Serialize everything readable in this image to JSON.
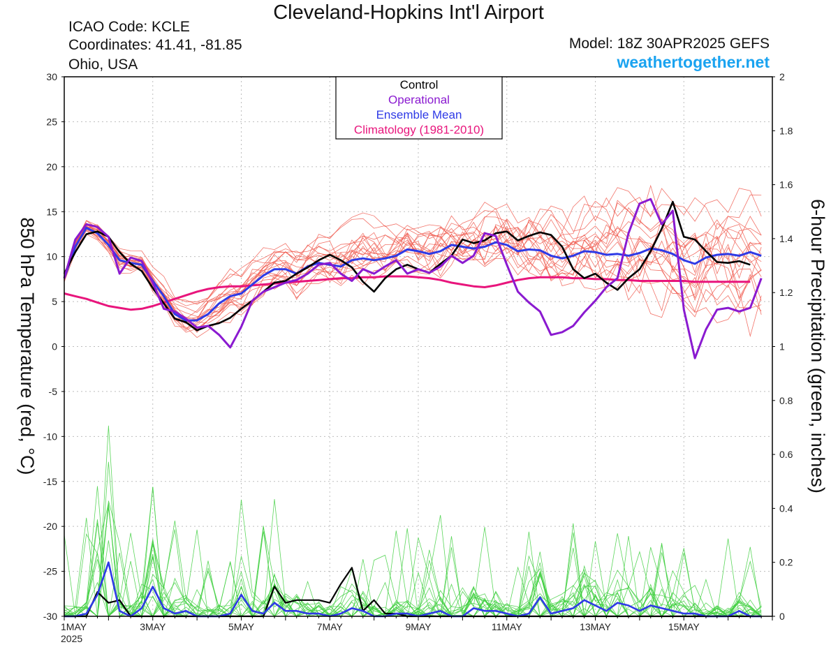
{
  "header": {
    "title": "Cleveland-Hopkins Int'l Airport",
    "icao": "ICAO Code: KCLE",
    "coordinates": "Coordinates: 41.41, -81.85",
    "location": "Ohio, USA",
    "model": "Model: 18Z 30APR2025 GEFS",
    "site": "weathertogether.net"
  },
  "chart_data": {
    "type": "line",
    "ylabel": "850 hPa Temperature (red, °C)",
    "y2label": "6-hour Precipitation (green, inches)",
    "xlim": [
      0,
      64
    ],
    "ylim": [
      -30,
      30
    ],
    "y2lim": [
      0,
      2
    ],
    "yticks": [
      "30",
      "25",
      "20",
      "15",
      "10",
      "5",
      "0",
      "-5",
      "-10",
      "-15",
      "-20",
      "-25",
      "-30"
    ],
    "y2ticks": [
      "2",
      "1.8",
      "1.6",
      "1.4",
      "1.2",
      "1",
      "0.8",
      "0.6",
      "0.4",
      "0.2",
      "0"
    ],
    "xticks": [
      {
        "x": 0,
        "label": "1MAY"
      },
      {
        "x": 8,
        "label": "3MAY"
      },
      {
        "x": 16,
        "label": "5MAY"
      },
      {
        "x": 24,
        "label": "7MAY"
      },
      {
        "x": 32,
        "label": "9MAY"
      },
      {
        "x": 40,
        "label": "11MAY"
      },
      {
        "x": 48,
        "label": "13MAY"
      },
      {
        "x": 56,
        "label": "15MAY"
      }
    ],
    "year_label": "2025",
    "grid": true,
    "legend_position": "top-center",
    "legend": [
      {
        "label": "Control",
        "color": "#000000"
      },
      {
        "label": "Operational",
        "color": "#8a1ad0"
      },
      {
        "label": "Ensemble Mean",
        "color": "#2e3ae6"
      },
      {
        "label": "Climatology (1981-2010)",
        "color": "#e8157c"
      }
    ],
    "colors": {
      "members_temp": "#f05a4f",
      "members_precip": "#3ecf3e",
      "control": "#000000",
      "operational": "#8a1ad0",
      "mean": "#2e3ae6",
      "climatology": "#e8157c"
    },
    "temperature_series": [
      {
        "name": "Control",
        "values": [
          8.1,
          10.5,
          12.5,
          12.8,
          12.2,
          10.5,
          9.2,
          8.4,
          6.5,
          4.8,
          3.1,
          2.7,
          1.8,
          2.3,
          2.6,
          3.2,
          4.2,
          5.1,
          6.1,
          7.1,
          7.3,
          8.1,
          8.8,
          9.6,
          10.2,
          9.6,
          8.8,
          7.2,
          6.1,
          7.6,
          8.6,
          9.1,
          8.6,
          8.2,
          9.2,
          10.1,
          11.9,
          11.5,
          11.8,
          12.6,
          12.8,
          11.8,
          12.3,
          12.7,
          12.4,
          11.1,
          8.6,
          7.6,
          8.1,
          7.1,
          6.3,
          7.6,
          8.6,
          10.6,
          13.1,
          16.1,
          12.2,
          11.9,
          10.6,
          9.4,
          9.3,
          9.5,
          9.1
        ]
      },
      {
        "name": "Operational",
        "values": [
          7.6,
          11.9,
          13.6,
          13.3,
          12.2,
          8.1,
          9.9,
          9.5,
          7.1,
          4.2,
          3.9,
          3.1,
          2.1,
          2.3,
          1.3,
          -0.1,
          2.2,
          5.1,
          6.1,
          6.6,
          7.1,
          7.4,
          8.1,
          9.1,
          9.3,
          8.1,
          7.3,
          8.6,
          8.1,
          8.9,
          9.6,
          8.1,
          8.6,
          8.2,
          8.9,
          10.1,
          9.3,
          10.1,
          12.6,
          12.3,
          9.1,
          6.1,
          4.9,
          3.9,
          1.3,
          1.6,
          2.3,
          3.8,
          5.1,
          6.6,
          7.6,
          12.6,
          15.9,
          16.4,
          13.6,
          15.1,
          4.1,
          -1.3,
          1.9,
          4.1,
          4.3,
          3.9,
          4.3,
          7.6
        ]
      },
      {
        "name": "Ensemble Mean",
        "values": [
          7.6,
          11.1,
          13.2,
          12.6,
          11.3,
          9.6,
          9.3,
          9.1,
          7.3,
          5.6,
          3.6,
          2.9,
          2.9,
          3.6,
          4.8,
          5.6,
          5.9,
          6.9,
          7.9,
          8.6,
          8.6,
          8.1,
          8.9,
          9.3,
          9.1,
          8.9,
          9.6,
          9.8,
          9.6,
          9.8,
          10.1,
          10.8,
          10.6,
          10.3,
          10.6,
          11.3,
          11.1,
          10.9,
          11.1,
          11.6,
          11.3,
          10.6,
          10.8,
          10.7,
          10.1,
          9.8,
          10.1,
          10.6,
          10.5,
          10.2,
          10.3,
          10.1,
          10.4,
          10.9,
          10.7,
          10.3,
          9.6,
          9.2,
          9.9,
          10.2,
          10.3,
          10.1,
          10.5,
          10.1
        ]
      },
      {
        "name": "Climatology (1981-2010)",
        "values": [
          5.9,
          5.6,
          5.3,
          4.9,
          4.5,
          4.3,
          4.1,
          4.2,
          4.5,
          4.9,
          5.3,
          5.7,
          6.1,
          6.4,
          6.6,
          6.7,
          6.7,
          6.8,
          6.9,
          7.0,
          7.1,
          7.2,
          7.3,
          7.4,
          7.5,
          7.6,
          7.6,
          7.7,
          7.7,
          7.8,
          7.8,
          7.8,
          7.7,
          7.6,
          7.4,
          7.1,
          6.9,
          6.7,
          6.6,
          6.8,
          7.1,
          7.4,
          7.6,
          7.7,
          7.7,
          7.7,
          7.6,
          7.6,
          7.5,
          7.5,
          7.4,
          7.4,
          7.3,
          7.3,
          7.3,
          7.3,
          7.3,
          7.2,
          7.2,
          7.2,
          7.2,
          7.2,
          7.2
        ]
      }
    ],
    "precip_series": [
      {
        "name": "Control",
        "values": [
          0,
          0,
          0,
          0.09,
          0.05,
          0.06,
          0,
          0,
          0,
          0,
          0,
          0,
          0,
          0,
          0,
          0,
          0,
          0,
          0,
          0.11,
          0.05,
          0.06,
          0.06,
          0.06,
          0.05,
          0.12,
          0.18,
          0.02,
          0.06,
          0.01,
          0.01,
          0,
          0,
          0,
          0,
          0,
          0,
          0,
          0,
          0,
          0,
          0,
          0,
          0,
          0,
          0,
          0,
          0,
          0,
          0,
          0,
          0,
          0,
          0,
          0,
          0,
          0,
          0,
          0,
          0,
          0,
          0,
          0,
          0
        ]
      },
      {
        "name": "Ensemble Mean",
        "values": [
          0,
          0,
          0.01,
          0.08,
          0.2,
          0.02,
          0,
          0.03,
          0.11,
          0.03,
          0.01,
          0.02,
          0,
          0,
          0,
          0.01,
          0.08,
          0.02,
          0.01,
          0.05,
          0.02,
          0.02,
          0.01,
          0.01,
          0,
          0.01,
          0.03,
          0.02,
          0,
          0,
          0.01,
          0.01,
          0,
          0.01,
          0.02,
          0,
          0,
          0.03,
          0.02,
          0.02,
          0.01,
          0,
          0.01,
          0.07,
          0.01,
          0.02,
          0.03,
          0.06,
          0.04,
          0.02,
          0.05,
          0.04,
          0.02,
          0.04,
          0.03,
          0.02,
          0.01,
          0.01,
          0,
          0,
          0,
          0.02,
          0,
          0
        ]
      }
    ]
  }
}
